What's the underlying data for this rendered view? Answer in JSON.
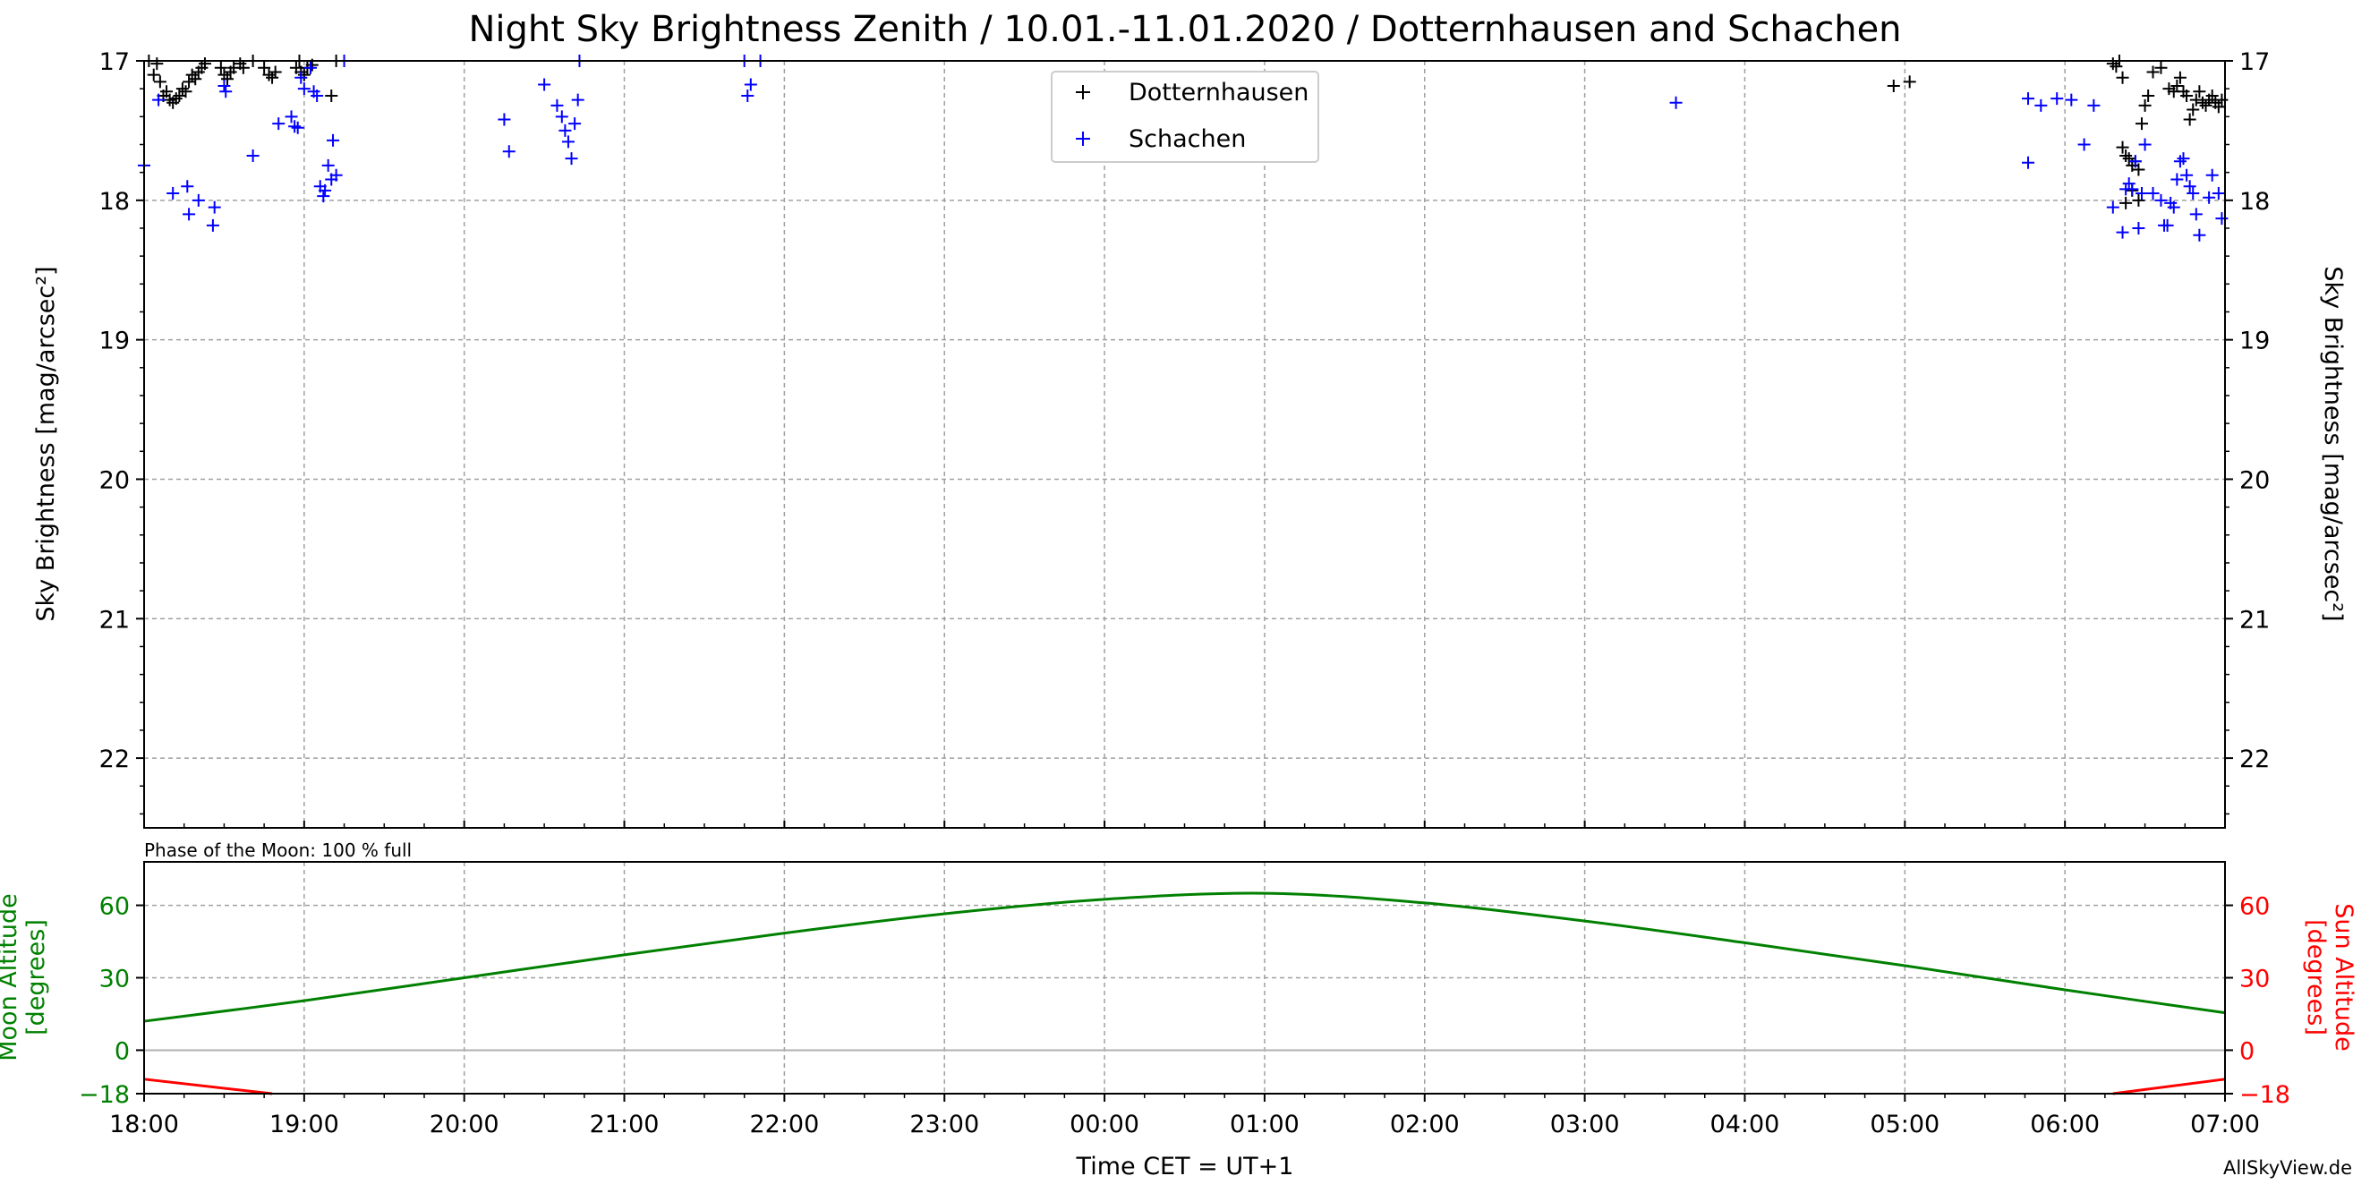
{
  "title": "Night Sky Brightness Zenith / 10.01.-11.01.2020 / Dotternhausen and Schachen",
  "credit": "AllSkyView.de",
  "colors": {
    "dotternhausen": "#000000",
    "schachen": "#0000ff",
    "moon": "#008000",
    "sun": "#ff0000",
    "grid": "#a0a0a0"
  },
  "chart_data": [
    {
      "type": "scatter",
      "ylabel": "Sky Brightness [mag/arcsec²]",
      "ylabel_right": "Sky Brightness [mag/arcsec²]",
      "xlim": [
        0,
        13
      ],
      "ylim": [
        22.5,
        17
      ],
      "y_inverted": true,
      "yticks": [
        "17",
        "18",
        "19",
        "20",
        "21",
        "22"
      ],
      "grid": true,
      "legend_placement": "top-center",
      "series": [
        {
          "name": "Dotternhausen",
          "marker": "+",
          "x_units": "hours after 18:00",
          "points": [
            [
              0.03,
              17.0
            ],
            [
              0.08,
              17.02
            ],
            [
              0.06,
              17.1
            ],
            [
              0.1,
              17.15
            ],
            [
              0.12,
              17.25
            ],
            [
              0.14,
              17.22
            ],
            [
              0.16,
              17.28
            ],
            [
              0.18,
              17.3
            ],
            [
              0.2,
              17.27
            ],
            [
              0.22,
              17.25
            ],
            [
              0.24,
              17.2
            ],
            [
              0.26,
              17.22
            ],
            [
              0.28,
              17.15
            ],
            [
              0.3,
              17.1
            ],
            [
              0.32,
              17.13
            ],
            [
              0.34,
              17.08
            ],
            [
              0.36,
              17.05
            ],
            [
              0.38,
              17.02
            ],
            [
              0.48,
              17.05
            ],
            [
              0.5,
              17.1
            ],
            [
              0.52,
              17.13
            ],
            [
              0.54,
              17.08
            ],
            [
              0.56,
              17.05
            ],
            [
              0.6,
              17.02
            ],
            [
              0.62,
              17.05
            ],
            [
              0.68,
              17.0
            ],
            [
              0.75,
              17.05
            ],
            [
              0.78,
              17.1
            ],
            [
              0.8,
              17.12
            ],
            [
              0.82,
              17.08
            ],
            [
              0.95,
              17.05
            ],
            [
              0.97,
              17.0
            ],
            [
              0.98,
              17.08
            ],
            [
              1.0,
              17.1
            ],
            [
              1.02,
              17.05
            ],
            [
              1.05,
              17.03
            ],
            [
              1.17,
              17.25
            ],
            [
              1.2,
              17.0
            ],
            [
              10.93,
              17.18
            ],
            [
              11.03,
              17.15
            ],
            [
              12.3,
              17.02
            ],
            [
              12.32,
              17.04
            ],
            [
              12.34,
              17.0
            ],
            [
              12.36,
              17.12
            ],
            [
              12.36,
              17.62
            ],
            [
              12.38,
              17.68
            ],
            [
              12.4,
              17.7
            ],
            [
              12.42,
              17.75
            ],
            [
              12.44,
              17.72
            ],
            [
              12.46,
              17.78
            ],
            [
              12.38,
              18.02
            ],
            [
              12.42,
              17.93
            ],
            [
              12.46,
              18.0
            ],
            [
              12.48,
              17.45
            ],
            [
              12.5,
              17.32
            ],
            [
              12.52,
              17.25
            ],
            [
              12.55,
              17.08
            ],
            [
              12.6,
              17.05
            ],
            [
              12.65,
              17.2
            ],
            [
              12.68,
              17.22
            ],
            [
              12.7,
              17.18
            ],
            [
              12.72,
              17.12
            ],
            [
              12.74,
              17.22
            ],
            [
              12.76,
              17.25
            ],
            [
              12.78,
              17.42
            ],
            [
              12.8,
              17.35
            ],
            [
              12.82,
              17.28
            ],
            [
              12.84,
              17.22
            ],
            [
              12.86,
              17.3
            ],
            [
              12.88,
              17.32
            ],
            [
              12.9,
              17.28
            ],
            [
              12.92,
              17.25
            ],
            [
              12.94,
              17.3
            ],
            [
              12.96,
              17.33
            ],
            [
              12.98,
              17.28
            ]
          ]
        },
        {
          "name": "Schachen",
          "marker": "+",
          "x_units": "hours after 18:00",
          "points": [
            [
              0.0,
              17.75
            ],
            [
              0.09,
              17.28
            ],
            [
              0.18,
              17.95
            ],
            [
              0.27,
              17.9
            ],
            [
              0.28,
              18.1
            ],
            [
              0.34,
              18.0
            ],
            [
              0.43,
              18.18
            ],
            [
              0.44,
              18.05
            ],
            [
              0.5,
              17.18
            ],
            [
              0.51,
              17.22
            ],
            [
              0.68,
              17.68
            ],
            [
              0.84,
              17.45
            ],
            [
              0.92,
              17.4
            ],
            [
              0.94,
              17.47
            ],
            [
              0.96,
              17.48
            ],
            [
              0.98,
              17.12
            ],
            [
              1.0,
              17.2
            ],
            [
              1.04,
              17.05
            ],
            [
              1.06,
              17.22
            ],
            [
              1.08,
              17.25
            ],
            [
              1.1,
              17.9
            ],
            [
              1.12,
              17.97
            ],
            [
              1.13,
              17.93
            ],
            [
              1.15,
              17.75
            ],
            [
              1.17,
              17.85
            ],
            [
              1.18,
              17.57
            ],
            [
              1.2,
              17.82
            ],
            [
              1.25,
              17.0
            ],
            [
              2.25,
              17.42
            ],
            [
              2.28,
              17.65
            ],
            [
              2.5,
              17.17
            ],
            [
              2.58,
              17.32
            ],
            [
              2.61,
              17.4
            ],
            [
              2.63,
              17.5
            ],
            [
              2.65,
              17.58
            ],
            [
              2.67,
              17.7
            ],
            [
              2.69,
              17.45
            ],
            [
              2.71,
              17.28
            ],
            [
              2.72,
              17.0
            ],
            [
              3.75,
              17.0
            ],
            [
              3.77,
              17.25
            ],
            [
              3.79,
              17.17
            ],
            [
              3.85,
              17.0
            ],
            [
              9.57,
              17.3
            ],
            [
              11.77,
              17.73
            ],
            [
              11.77,
              17.27
            ],
            [
              11.85,
              17.32
            ],
            [
              11.95,
              17.27
            ],
            [
              12.04,
              17.28
            ],
            [
              12.12,
              17.6
            ],
            [
              12.18,
              17.32
            ],
            [
              12.3,
              18.05
            ],
            [
              12.36,
              18.23
            ],
            [
              12.38,
              17.92
            ],
            [
              12.4,
              17.88
            ],
            [
              12.42,
              17.92
            ],
            [
              12.44,
              17.72
            ],
            [
              12.46,
              18.2
            ],
            [
              12.48,
              17.95
            ],
            [
              12.5,
              17.6
            ],
            [
              12.55,
              17.95
            ],
            [
              12.6,
              18.0
            ],
            [
              12.62,
              18.18
            ],
            [
              12.64,
              18.18
            ],
            [
              12.66,
              18.02
            ],
            [
              12.68,
              18.05
            ],
            [
              12.7,
              17.85
            ],
            [
              12.72,
              17.72
            ],
            [
              12.74,
              17.7
            ],
            [
              12.76,
              17.82
            ],
            [
              12.78,
              17.9
            ],
            [
              12.8,
              17.95
            ],
            [
              12.82,
              18.1
            ],
            [
              12.84,
              18.25
            ],
            [
              12.9,
              17.98
            ],
            [
              12.92,
              17.82
            ],
            [
              12.96,
              17.95
            ],
            [
              12.98,
              18.13
            ]
          ]
        }
      ]
    },
    {
      "type": "line",
      "annotation": "Phase of the Moon: 100 % full",
      "xlabel": "Time CET = UT+1",
      "ylabel": "Moon Altitude\n[degrees]",
      "ylabel_right": "Sun Altitude\n[degrees]",
      "xlim": [
        0,
        13
      ],
      "ylim": [
        -18,
        78
      ],
      "xticks": [
        "18:00",
        "19:00",
        "20:00",
        "21:00",
        "22:00",
        "23:00",
        "00:00",
        "01:00",
        "02:00",
        "03:00",
        "04:00",
        "05:00",
        "06:00",
        "07:00"
      ],
      "yticks_left": [
        "−18",
        "0",
        "30",
        "60"
      ],
      "yticks_right": [
        "−18",
        "0",
        "30",
        "60"
      ],
      "grid": true,
      "series": [
        {
          "name": "Moon Altitude",
          "x_units": "hours after 18:00",
          "points": [
            [
              0,
              12
            ],
            [
              1,
              20.5
            ],
            [
              2,
              30
            ],
            [
              3,
              39.5
            ],
            [
              4,
              48.5
            ],
            [
              5,
              56.5
            ],
            [
              6,
              62.5
            ],
            [
              7,
              65
            ],
            [
              8,
              61
            ],
            [
              9,
              53.5
            ],
            [
              10,
              44.5
            ],
            [
              11,
              35
            ],
            [
              12,
              25
            ],
            [
              13,
              15.5
            ]
          ]
        },
        {
          "name": "Sun Altitude",
          "x_units": "hours after 18:00",
          "points": [
            [
              0,
              -12
            ],
            [
              0.8,
              -18
            ],
            [
              12.3,
              -18
            ],
            [
              13,
              -12
            ]
          ]
        }
      ]
    }
  ]
}
